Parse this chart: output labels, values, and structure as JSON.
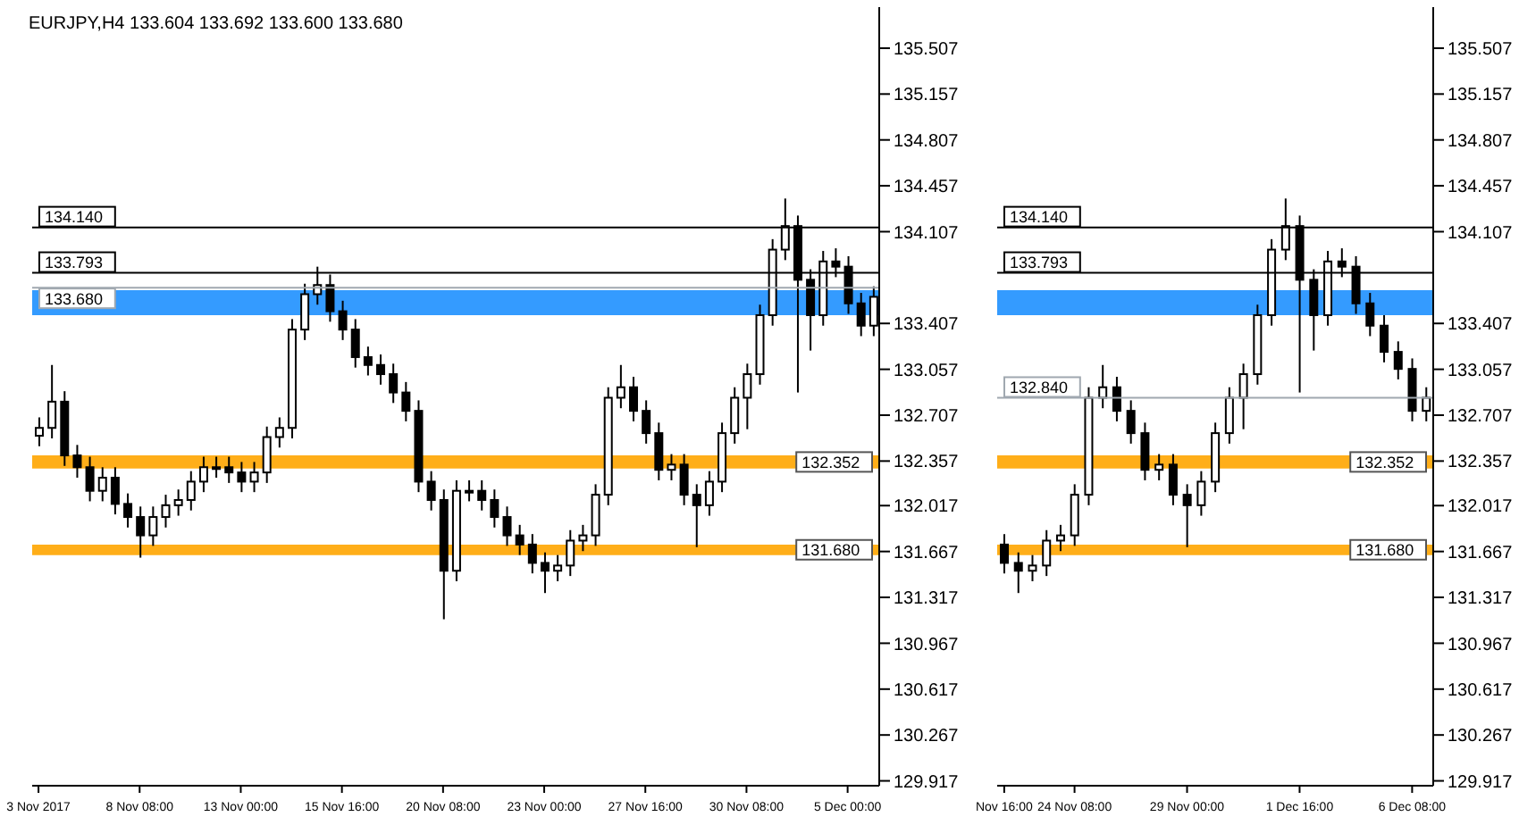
{
  "chart_data": [
    {
      "type": "candlestick",
      "title": "EURJPY,H4  133.604 133.692 133.600 133.680",
      "color": "#000000",
      "categories": [
        "3 Nov 2017",
        null,
        null,
        null,
        null,
        null,
        null,
        null,
        "8 Nov 08:00",
        null,
        null,
        null,
        null,
        null,
        null,
        null,
        "13 Nov 00:00",
        null,
        null,
        null,
        null,
        null,
        null,
        null,
        "15 Nov 16:00",
        null,
        null,
        null,
        null,
        null,
        null,
        null,
        "20 Nov 08:00",
        null,
        null,
        null,
        null,
        null,
        null,
        null,
        "23 Nov 00:00",
        null,
        null,
        null,
        null,
        null,
        null,
        null,
        "27 Nov 16:00",
        null,
        null,
        null,
        null,
        null,
        null,
        null,
        "30 Nov 08:00",
        null,
        null,
        null,
        null,
        null,
        null,
        null,
        "5 Dec 00:00",
        null,
        null
      ],
      "ohlc": [
        [
          132.55,
          132.69,
          132.47,
          132.61
        ],
        [
          132.61,
          133.09,
          132.53,
          132.81
        ],
        [
          132.81,
          132.89,
          132.32,
          132.4
        ],
        [
          132.4,
          132.48,
          132.23,
          132.31
        ],
        [
          132.31,
          132.39,
          132.05,
          132.13
        ],
        [
          132.13,
          132.31,
          132.05,
          132.23
        ],
        [
          132.23,
          132.31,
          131.95,
          132.03
        ],
        [
          132.03,
          132.11,
          131.85,
          131.93
        ],
        [
          131.93,
          132.01,
          131.62,
          131.79
        ],
        [
          131.79,
          132.01,
          131.71,
          131.93
        ],
        [
          131.93,
          132.1,
          131.85,
          132.02
        ],
        [
          132.02,
          132.14,
          131.94,
          132.06
        ],
        [
          132.06,
          132.28,
          131.98,
          132.2
        ],
        [
          132.2,
          132.39,
          132.12,
          132.31
        ],
        [
          132.31,
          132.39,
          132.23,
          132.31
        ],
        [
          132.31,
          132.39,
          132.19,
          132.27
        ],
        [
          132.27,
          132.35,
          132.12,
          132.2
        ],
        [
          132.2,
          132.35,
          132.12,
          132.27
        ],
        [
          132.27,
          132.62,
          132.19,
          132.54
        ],
        [
          132.54,
          132.69,
          132.46,
          132.61
        ],
        [
          132.61,
          133.44,
          132.53,
          133.36
        ],
        [
          133.36,
          133.71,
          133.28,
          133.63
        ],
        [
          133.63,
          133.84,
          133.55,
          133.7
        ],
        [
          133.7,
          133.78,
          133.42,
          133.5
        ],
        [
          133.5,
          133.58,
          133.28,
          133.36
        ],
        [
          133.36,
          133.44,
          133.07,
          133.15
        ],
        [
          133.15,
          133.23,
          133.01,
          133.09
        ],
        [
          133.09,
          133.17,
          132.94,
          133.02
        ],
        [
          133.02,
          133.1,
          132.8,
          132.88
        ],
        [
          132.88,
          132.96,
          132.66,
          132.74
        ],
        [
          132.74,
          132.82,
          132.12,
          132.2
        ],
        [
          132.2,
          132.28,
          131.98,
          132.06
        ],
        [
          132.06,
          132.14,
          131.15,
          131.52
        ],
        [
          131.52,
          132.21,
          131.44,
          132.13
        ],
        [
          132.13,
          132.21,
          132.05,
          132.13
        ],
        [
          132.13,
          132.21,
          131.98,
          132.06
        ],
        [
          132.06,
          132.14,
          131.85,
          131.93
        ],
        [
          131.93,
          132.01,
          131.71,
          131.79
        ],
        [
          131.79,
          131.87,
          131.64,
          131.72
        ],
        [
          131.72,
          131.8,
          131.5,
          131.58
        ],
        [
          131.58,
          131.66,
          131.35,
          131.52
        ],
        [
          131.52,
          131.64,
          131.44,
          131.56
        ],
        [
          131.56,
          131.83,
          131.48,
          131.75
        ],
        [
          131.75,
          131.87,
          131.67,
          131.79
        ],
        [
          131.79,
          132.18,
          131.71,
          132.1
        ],
        [
          132.1,
          132.92,
          132.02,
          132.84
        ],
        [
          132.84,
          133.09,
          132.76,
          132.92
        ],
        [
          132.92,
          133.0,
          132.66,
          132.74
        ],
        [
          132.74,
          132.82,
          132.49,
          132.57
        ],
        [
          132.57,
          132.65,
          132.21,
          132.29
        ],
        [
          132.29,
          132.41,
          132.21,
          132.33
        ],
        [
          132.33,
          132.41,
          132.02,
          132.1
        ],
        [
          132.1,
          132.18,
          131.7,
          132.02
        ],
        [
          132.02,
          132.28,
          131.94,
          132.2
        ],
        [
          132.2,
          132.65,
          132.12,
          132.57
        ],
        [
          132.57,
          132.92,
          132.49,
          132.84
        ],
        [
          132.84,
          133.1,
          132.6,
          133.02
        ],
        [
          133.02,
          133.55,
          132.94,
          133.47
        ],
        [
          133.47,
          134.05,
          133.39,
          133.97
        ],
        [
          133.97,
          134.36,
          133.89,
          134.15
        ],
        [
          134.15,
          134.23,
          132.88,
          133.74
        ],
        [
          133.74,
          133.82,
          133.2,
          133.47
        ],
        [
          133.47,
          133.96,
          133.39,
          133.88
        ],
        [
          133.88,
          133.98,
          133.76,
          133.84
        ],
        [
          133.84,
          133.92,
          133.48,
          133.56
        ],
        [
          133.56,
          133.64,
          133.31,
          133.39
        ],
        [
          133.39,
          133.69,
          133.31,
          133.61
        ]
      ],
      "ylim": [
        129.88,
        135.82
      ],
      "yticks": [
        129.917,
        130.267,
        130.617,
        130.967,
        131.317,
        131.667,
        132.017,
        132.357,
        132.707,
        133.057,
        133.407,
        134.107,
        134.457,
        134.807,
        135.157,
        135.507
      ],
      "ref_lines": [
        {
          "axis": "y",
          "value": 134.14,
          "label": "134.140",
          "color": "#000000"
        },
        {
          "axis": "y",
          "value": 133.793,
          "label": "133.793",
          "color": "#000000"
        },
        {
          "axis": "y",
          "value": 133.68,
          "label": "133.680",
          "color": "#a0a8b0"
        }
      ],
      "bands": [
        {
          "axis": "y",
          "from": 133.47,
          "to": 133.66,
          "color": "#1e90ff"
        },
        {
          "axis": "y",
          "from": 132.3,
          "to": 132.4,
          "label": "132.352",
          "color": "#ffa500"
        },
        {
          "axis": "y",
          "from": 131.64,
          "to": 131.72,
          "label": "131.680",
          "color": "#ffa500"
        }
      ]
    },
    {
      "type": "candlestick",
      "color": "#000000",
      "categories": [
        "Nov 16:00",
        null,
        null,
        null,
        null,
        "24 Nov 08:00",
        null,
        null,
        null,
        null,
        null,
        null,
        null,
        "29 Nov 00:00",
        null,
        null,
        null,
        null,
        null,
        null,
        null,
        "1 Dec 16:00",
        null,
        null,
        null,
        null,
        null,
        null,
        null,
        "6 Dec 08:00",
        null
      ],
      "ohlc": [
        [
          131.72,
          131.8,
          131.5,
          131.58
        ],
        [
          131.58,
          131.66,
          131.35,
          131.52
        ],
        [
          131.52,
          131.64,
          131.44,
          131.56
        ],
        [
          131.56,
          131.83,
          131.48,
          131.75
        ],
        [
          131.75,
          131.87,
          131.67,
          131.79
        ],
        [
          131.79,
          132.18,
          131.71,
          132.1
        ],
        [
          132.1,
          132.92,
          132.02,
          132.84
        ],
        [
          132.84,
          133.09,
          132.76,
          132.92
        ],
        [
          132.92,
          133.0,
          132.66,
          132.74
        ],
        [
          132.74,
          132.82,
          132.49,
          132.57
        ],
        [
          132.57,
          132.65,
          132.21,
          132.29
        ],
        [
          132.29,
          132.41,
          132.21,
          132.33
        ],
        [
          132.33,
          132.41,
          132.02,
          132.1
        ],
        [
          132.1,
          132.18,
          131.7,
          132.02
        ],
        [
          132.02,
          132.28,
          131.94,
          132.2
        ],
        [
          132.2,
          132.65,
          132.12,
          132.57
        ],
        [
          132.57,
          132.92,
          132.49,
          132.84
        ],
        [
          132.84,
          133.1,
          132.6,
          133.02
        ],
        [
          133.02,
          133.55,
          132.94,
          133.47
        ],
        [
          133.47,
          134.05,
          133.39,
          133.97
        ],
        [
          133.97,
          134.36,
          133.89,
          134.15
        ],
        [
          134.15,
          134.23,
          132.88,
          133.74
        ],
        [
          133.74,
          133.82,
          133.2,
          133.47
        ],
        [
          133.47,
          133.96,
          133.39,
          133.88
        ],
        [
          133.88,
          133.98,
          133.76,
          133.84
        ],
        [
          133.84,
          133.92,
          133.48,
          133.56
        ],
        [
          133.56,
          133.64,
          133.31,
          133.39
        ],
        [
          133.39,
          133.47,
          133.11,
          133.19
        ],
        [
          133.19,
          133.27,
          132.98,
          133.06
        ],
        [
          133.06,
          133.14,
          132.66,
          132.74
        ],
        [
          132.74,
          132.92,
          132.66,
          132.84
        ]
      ],
      "ylim": [
        129.88,
        135.82
      ],
      "yticks": [
        129.917,
        130.267,
        130.617,
        130.967,
        131.317,
        131.667,
        132.017,
        132.357,
        132.707,
        133.057,
        133.407,
        134.107,
        134.457,
        134.807,
        135.157,
        135.507
      ],
      "ref_lines": [
        {
          "axis": "y",
          "value": 134.14,
          "label": "134.140",
          "color": "#000000"
        },
        {
          "axis": "y",
          "value": 133.793,
          "label": "133.793",
          "color": "#000000"
        },
        {
          "axis": "y",
          "value": 132.84,
          "label": "132.840",
          "color": "#a0a8b0"
        }
      ],
      "bands": [
        {
          "axis": "y",
          "from": 133.47,
          "to": 133.66,
          "color": "#1e90ff"
        },
        {
          "axis": "y",
          "from": 132.3,
          "to": 132.4,
          "label": "132.352",
          "color": "#ffa500"
        },
        {
          "axis": "y",
          "from": 131.64,
          "to": 131.72,
          "label": "131.680",
          "color": "#ffa500"
        }
      ]
    }
  ]
}
